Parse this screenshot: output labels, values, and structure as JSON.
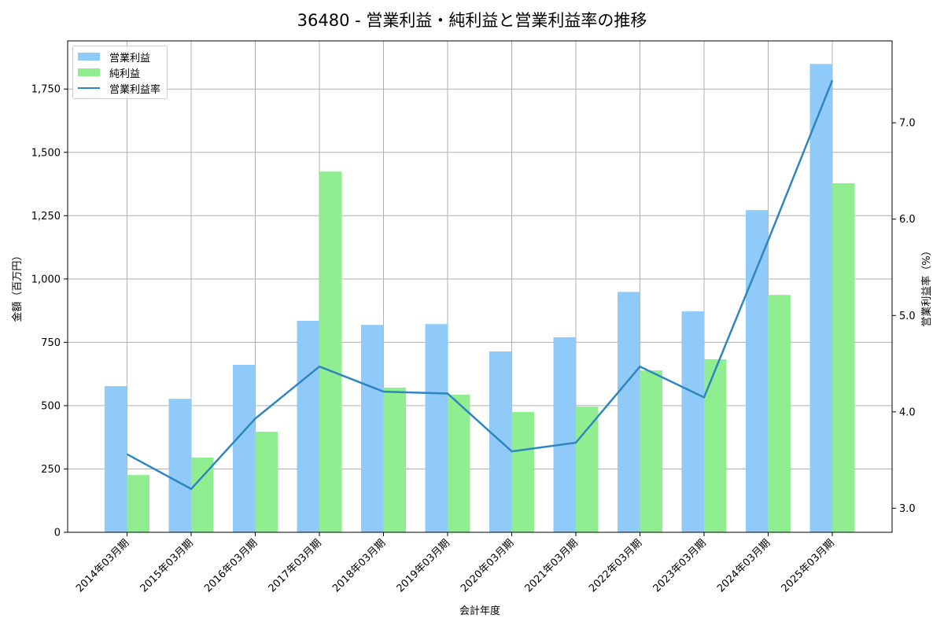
{
  "chart_data": {
    "type": "bar",
    "title": "36480 - 営業利益・純利益と営業利益率の推移",
    "xlabel": "会計年度",
    "ylabel": "金額（百万円）",
    "y2label": "営業利益率（%）",
    "categories": [
      "2014年03月期",
      "2015年03月期",
      "2016年03月期",
      "2017年03月期",
      "2018年03月期",
      "2019年03月期",
      "2020年03月期",
      "2021年03月期",
      "2022年03月期",
      "2023年03月期",
      "2024年03月期",
      "2025年03月期"
    ],
    "series": [
      {
        "name": "営業利益",
        "type": "bar",
        "axis": "left",
        "color": "#90caf9",
        "values": [
          577,
          527,
          661,
          835,
          819,
          822,
          714,
          770,
          949,
          872,
          1272,
          1849
        ]
      },
      {
        "name": "純利益",
        "type": "bar",
        "axis": "left",
        "color": "#90ee90",
        "values": [
          226,
          295,
          397,
          1424,
          571,
          543,
          475,
          496,
          639,
          683,
          937,
          1378
        ]
      },
      {
        "name": "営業利益率",
        "type": "line",
        "axis": "right",
        "color": "#2e86c1",
        "values": [
          3.56,
          3.2,
          3.93,
          4.47,
          4.21,
          4.19,
          3.59,
          3.68,
          4.47,
          4.15,
          5.78,
          7.44
        ]
      }
    ],
    "ylim": [
      0,
      1940
    ],
    "y2lim": [
      2.75,
      7.85
    ],
    "yticks": [
      0,
      250,
      500,
      750,
      1000,
      1250,
      1500,
      1750
    ],
    "ytick_labels": [
      "0",
      "250",
      "500",
      "750",
      "1,000",
      "1,250",
      "1,500",
      "1,750"
    ],
    "y2ticks": [
      3.0,
      4.0,
      5.0,
      6.0,
      7.0
    ],
    "y2tick_labels": [
      "3.0",
      "4.0",
      "5.0",
      "6.0",
      "7.0"
    ],
    "grid": true,
    "legend_position": "upper left"
  }
}
